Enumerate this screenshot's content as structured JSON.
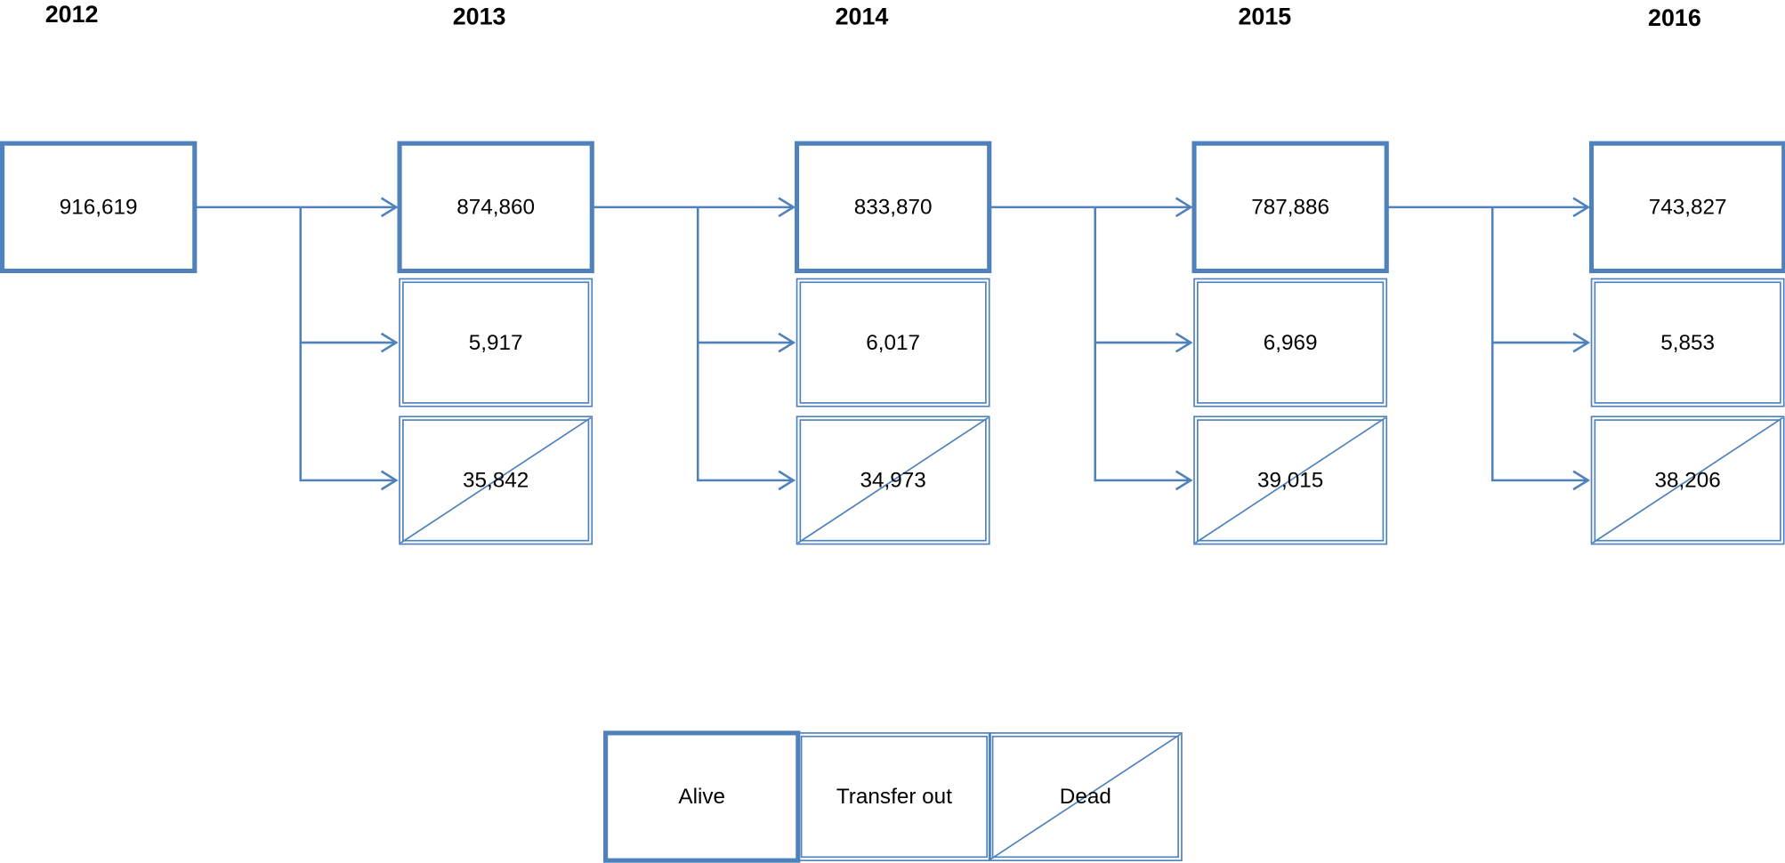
{
  "years": [
    "2012",
    "2013",
    "2014",
    "2015",
    "2016"
  ],
  "columns": [
    {
      "alive": "916,619"
    },
    {
      "alive": "874,860",
      "transfer_out": "5,917",
      "dead": "35,842"
    },
    {
      "alive": "833,870",
      "transfer_out": "6,017",
      "dead": "34,973"
    },
    {
      "alive": "787,886",
      "transfer_out": "6,969",
      "dead": "39,015"
    },
    {
      "alive": "743,827",
      "transfer_out": "5,853",
      "dead": "38,206"
    }
  ],
  "legend": {
    "alive": "Alive",
    "transfer_out": "Transfer out",
    "dead": "Dead"
  }
}
